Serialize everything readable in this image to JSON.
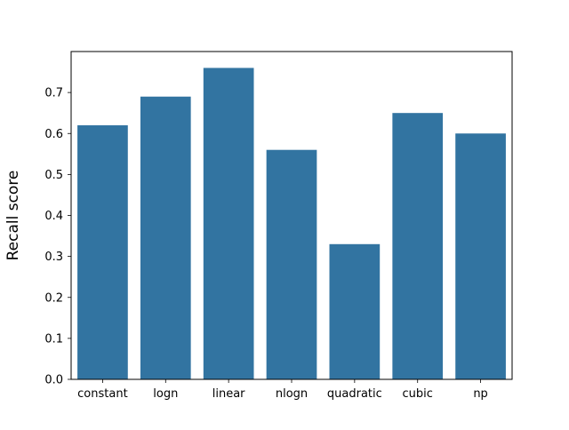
{
  "chart_data": {
    "type": "bar",
    "title": "",
    "xlabel": "",
    "ylabel": "Recall score",
    "categories": [
      "constant",
      "logn",
      "linear",
      "nlogn",
      "quadratic",
      "cubic",
      "np"
    ],
    "values": [
      0.62,
      0.69,
      0.76,
      0.56,
      0.33,
      0.65,
      0.6
    ],
    "ylim": [
      0,
      0.8
    ],
    "yticks": [
      "0.0",
      "0.1",
      "0.2",
      "0.3",
      "0.4",
      "0.5",
      "0.6",
      "0.7"
    ],
    "grid": false,
    "legend": "none",
    "bar_color": "#3274a1",
    "axis_color": "#000000"
  }
}
